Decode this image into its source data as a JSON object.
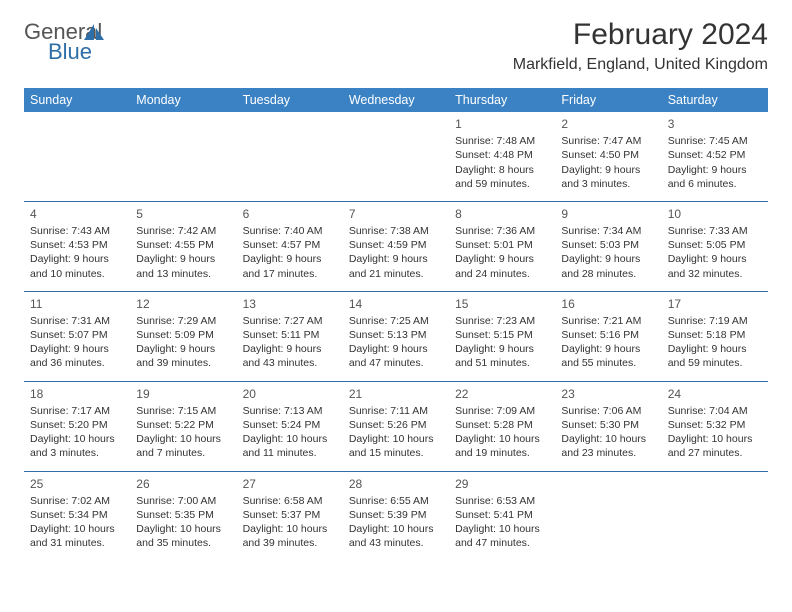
{
  "brand": {
    "line1": "General",
    "line2": "Blue"
  },
  "title": "February 2024",
  "location": "Markfield, England, United Kingdom",
  "colors": {
    "header_bg": "#3b82c4",
    "header_text": "#ffffff",
    "rule": "#2e6fa8",
    "body_text": "#333333",
    "brand_gray": "#555555",
    "brand_blue": "#2e6fa8",
    "background": "#ffffff"
  },
  "fonts": {
    "title_size_pt": 22,
    "location_size_pt": 12,
    "header_size_pt": 9,
    "cell_size_pt": 8,
    "daynum_size_pt": 9
  },
  "weekdays": [
    "Sunday",
    "Monday",
    "Tuesday",
    "Wednesday",
    "Thursday",
    "Friday",
    "Saturday"
  ],
  "weeks": [
    [
      null,
      null,
      null,
      null,
      {
        "n": "1",
        "sr": "Sunrise: 7:48 AM",
        "ss": "Sunset: 4:48 PM",
        "d1": "Daylight: 8 hours",
        "d2": "and 59 minutes."
      },
      {
        "n": "2",
        "sr": "Sunrise: 7:47 AM",
        "ss": "Sunset: 4:50 PM",
        "d1": "Daylight: 9 hours",
        "d2": "and 3 minutes."
      },
      {
        "n": "3",
        "sr": "Sunrise: 7:45 AM",
        "ss": "Sunset: 4:52 PM",
        "d1": "Daylight: 9 hours",
        "d2": "and 6 minutes."
      }
    ],
    [
      {
        "n": "4",
        "sr": "Sunrise: 7:43 AM",
        "ss": "Sunset: 4:53 PM",
        "d1": "Daylight: 9 hours",
        "d2": "and 10 minutes."
      },
      {
        "n": "5",
        "sr": "Sunrise: 7:42 AM",
        "ss": "Sunset: 4:55 PM",
        "d1": "Daylight: 9 hours",
        "d2": "and 13 minutes."
      },
      {
        "n": "6",
        "sr": "Sunrise: 7:40 AM",
        "ss": "Sunset: 4:57 PM",
        "d1": "Daylight: 9 hours",
        "d2": "and 17 minutes."
      },
      {
        "n": "7",
        "sr": "Sunrise: 7:38 AM",
        "ss": "Sunset: 4:59 PM",
        "d1": "Daylight: 9 hours",
        "d2": "and 21 minutes."
      },
      {
        "n": "8",
        "sr": "Sunrise: 7:36 AM",
        "ss": "Sunset: 5:01 PM",
        "d1": "Daylight: 9 hours",
        "d2": "and 24 minutes."
      },
      {
        "n": "9",
        "sr": "Sunrise: 7:34 AM",
        "ss": "Sunset: 5:03 PM",
        "d1": "Daylight: 9 hours",
        "d2": "and 28 minutes."
      },
      {
        "n": "10",
        "sr": "Sunrise: 7:33 AM",
        "ss": "Sunset: 5:05 PM",
        "d1": "Daylight: 9 hours",
        "d2": "and 32 minutes."
      }
    ],
    [
      {
        "n": "11",
        "sr": "Sunrise: 7:31 AM",
        "ss": "Sunset: 5:07 PM",
        "d1": "Daylight: 9 hours",
        "d2": "and 36 minutes."
      },
      {
        "n": "12",
        "sr": "Sunrise: 7:29 AM",
        "ss": "Sunset: 5:09 PM",
        "d1": "Daylight: 9 hours",
        "d2": "and 39 minutes."
      },
      {
        "n": "13",
        "sr": "Sunrise: 7:27 AM",
        "ss": "Sunset: 5:11 PM",
        "d1": "Daylight: 9 hours",
        "d2": "and 43 minutes."
      },
      {
        "n": "14",
        "sr": "Sunrise: 7:25 AM",
        "ss": "Sunset: 5:13 PM",
        "d1": "Daylight: 9 hours",
        "d2": "and 47 minutes."
      },
      {
        "n": "15",
        "sr": "Sunrise: 7:23 AM",
        "ss": "Sunset: 5:15 PM",
        "d1": "Daylight: 9 hours",
        "d2": "and 51 minutes."
      },
      {
        "n": "16",
        "sr": "Sunrise: 7:21 AM",
        "ss": "Sunset: 5:16 PM",
        "d1": "Daylight: 9 hours",
        "d2": "and 55 minutes."
      },
      {
        "n": "17",
        "sr": "Sunrise: 7:19 AM",
        "ss": "Sunset: 5:18 PM",
        "d1": "Daylight: 9 hours",
        "d2": "and 59 minutes."
      }
    ],
    [
      {
        "n": "18",
        "sr": "Sunrise: 7:17 AM",
        "ss": "Sunset: 5:20 PM",
        "d1": "Daylight: 10 hours",
        "d2": "and 3 minutes."
      },
      {
        "n": "19",
        "sr": "Sunrise: 7:15 AM",
        "ss": "Sunset: 5:22 PM",
        "d1": "Daylight: 10 hours",
        "d2": "and 7 minutes."
      },
      {
        "n": "20",
        "sr": "Sunrise: 7:13 AM",
        "ss": "Sunset: 5:24 PM",
        "d1": "Daylight: 10 hours",
        "d2": "and 11 minutes."
      },
      {
        "n": "21",
        "sr": "Sunrise: 7:11 AM",
        "ss": "Sunset: 5:26 PM",
        "d1": "Daylight: 10 hours",
        "d2": "and 15 minutes."
      },
      {
        "n": "22",
        "sr": "Sunrise: 7:09 AM",
        "ss": "Sunset: 5:28 PM",
        "d1": "Daylight: 10 hours",
        "d2": "and 19 minutes."
      },
      {
        "n": "23",
        "sr": "Sunrise: 7:06 AM",
        "ss": "Sunset: 5:30 PM",
        "d1": "Daylight: 10 hours",
        "d2": "and 23 minutes."
      },
      {
        "n": "24",
        "sr": "Sunrise: 7:04 AM",
        "ss": "Sunset: 5:32 PM",
        "d1": "Daylight: 10 hours",
        "d2": "and 27 minutes."
      }
    ],
    [
      {
        "n": "25",
        "sr": "Sunrise: 7:02 AM",
        "ss": "Sunset: 5:34 PM",
        "d1": "Daylight: 10 hours",
        "d2": "and 31 minutes."
      },
      {
        "n": "26",
        "sr": "Sunrise: 7:00 AM",
        "ss": "Sunset: 5:35 PM",
        "d1": "Daylight: 10 hours",
        "d2": "and 35 minutes."
      },
      {
        "n": "27",
        "sr": "Sunrise: 6:58 AM",
        "ss": "Sunset: 5:37 PM",
        "d1": "Daylight: 10 hours",
        "d2": "and 39 minutes."
      },
      {
        "n": "28",
        "sr": "Sunrise: 6:55 AM",
        "ss": "Sunset: 5:39 PM",
        "d1": "Daylight: 10 hours",
        "d2": "and 43 minutes."
      },
      {
        "n": "29",
        "sr": "Sunrise: 6:53 AM",
        "ss": "Sunset: 5:41 PM",
        "d1": "Daylight: 10 hours",
        "d2": "and 47 minutes."
      },
      null,
      null
    ]
  ]
}
